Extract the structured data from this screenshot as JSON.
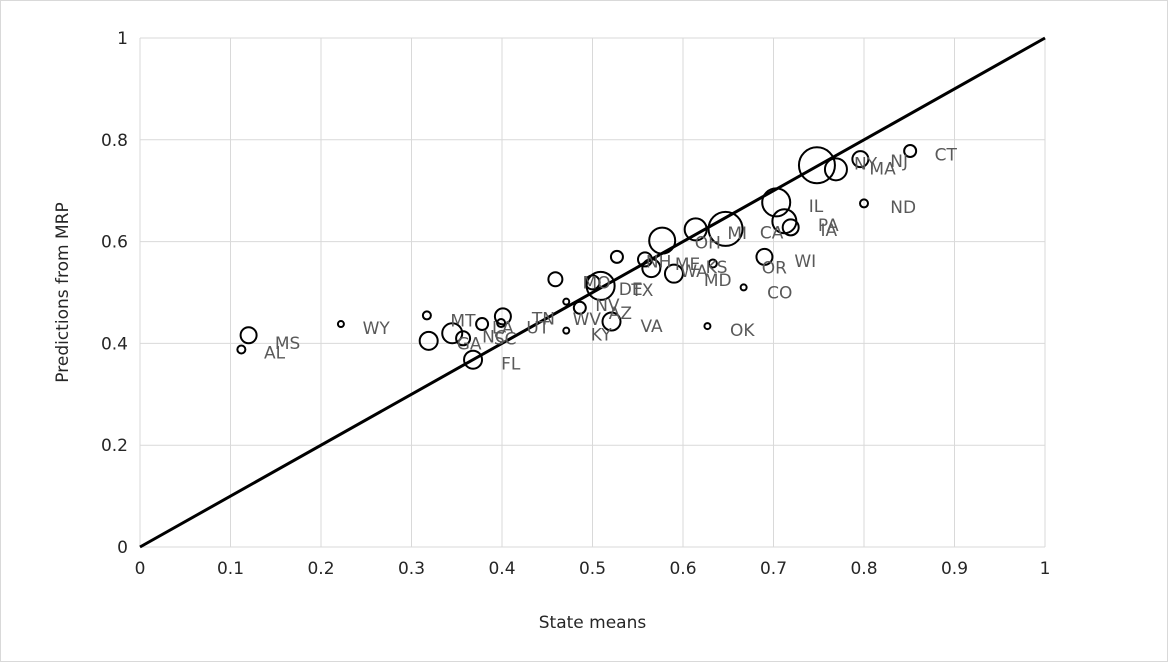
{
  "chart_data": {
    "type": "scatter",
    "title": "",
    "xlabel": "State means",
    "ylabel": "Predictions from MRP",
    "xlim": [
      0,
      1
    ],
    "ylim": [
      0,
      1
    ],
    "x_ticks": [
      "0",
      "0.1",
      "0.2",
      "0.3",
      "0.4",
      "0.5",
      "0.6",
      "0.7",
      "0.8",
      "0.9",
      "1"
    ],
    "y_ticks": [
      "0",
      "0.2",
      "0.4",
      "0.6",
      "0.8",
      "1"
    ],
    "grid": "vertical-and-horizontal",
    "reference_line": {
      "from": [
        0,
        0
      ],
      "to": [
        1,
        1
      ]
    },
    "point_color": "#000000",
    "label_color": "#595959",
    "points": [
      {
        "x": 0.112,
        "y": 0.388,
        "r": 4
      },
      {
        "x": 0.12,
        "y": 0.416,
        "r": 8
      },
      {
        "x": 0.222,
        "y": 0.438,
        "r": 3
      },
      {
        "x": 0.317,
        "y": 0.455,
        "r": 4
      },
      {
        "x": 0.319,
        "y": 0.405,
        "r": 9
      },
      {
        "x": 0.345,
        "y": 0.42,
        "r": 10
      },
      {
        "x": 0.357,
        "y": 0.41,
        "r": 7
      },
      {
        "x": 0.378,
        "y": 0.438,
        "r": 6
      },
      {
        "x": 0.368,
        "y": 0.368,
        "r": 9
      },
      {
        "x": 0.399,
        "y": 0.44,
        "r": 4
      },
      {
        "x": 0.401,
        "y": 0.453,
        "r": 8
      },
      {
        "x": 0.459,
        "y": 0.526,
        "r": 7
      },
      {
        "x": 0.471,
        "y": 0.482,
        "r": 3
      },
      {
        "x": 0.471,
        "y": 0.425,
        "r": 3
      },
      {
        "x": 0.486,
        "y": 0.47,
        "r": 6
      },
      {
        "x": 0.5,
        "y": 0.52,
        "r": 7
      },
      {
        "x": 0.509,
        "y": 0.513,
        "r": 14
      },
      {
        "x": 0.521,
        "y": 0.443,
        "r": 9
      },
      {
        "x": 0.527,
        "y": 0.57,
        "r": 6
      },
      {
        "x": 0.558,
        "y": 0.565,
        "r": 7
      },
      {
        "x": 0.565,
        "y": 0.548,
        "r": 9
      },
      {
        "x": 0.577,
        "y": 0.602,
        "r": 13
      },
      {
        "x": 0.59,
        "y": 0.537,
        "r": 9
      },
      {
        "x": 0.614,
        "y": 0.624,
        "r": 11
      },
      {
        "x": 0.627,
        "y": 0.434,
        "r": 3
      },
      {
        "x": 0.633,
        "y": 0.557,
        "r": 4
      },
      {
        "x": 0.647,
        "y": 0.625,
        "r": 17
      },
      {
        "x": 0.667,
        "y": 0.51,
        "r": 3
      },
      {
        "x": 0.69,
        "y": 0.57,
        "r": 8
      },
      {
        "x": 0.703,
        "y": 0.677,
        "r": 14
      },
      {
        "x": 0.712,
        "y": 0.64,
        "r": 12
      },
      {
        "x": 0.719,
        "y": 0.628,
        "r": 8
      },
      {
        "x": 0.748,
        "y": 0.75,
        "r": 18
      },
      {
        "x": 0.769,
        "y": 0.742,
        "r": 11
      },
      {
        "x": 0.796,
        "y": 0.762,
        "r": 8
      },
      {
        "x": 0.8,
        "y": 0.675,
        "r": 4
      },
      {
        "x": 0.851,
        "y": 0.778,
        "r": 6
      }
    ],
    "labels": [
      {
        "text": "AL",
        "x": 0.137,
        "y": 0.382
      },
      {
        "text": "MS",
        "x": 0.149,
        "y": 0.401
      },
      {
        "text": "WY",
        "x": 0.246,
        "y": 0.43
      },
      {
        "text": "MT",
        "x": 0.343,
        "y": 0.445
      },
      {
        "text": "GA",
        "x": 0.35,
        "y": 0.4
      },
      {
        "text": "NC",
        "x": 0.378,
        "y": 0.414
      },
      {
        "text": "SC",
        "x": 0.391,
        "y": 0.41
      },
      {
        "text": "LA",
        "x": 0.389,
        "y": 0.431
      },
      {
        "text": "UT",
        "x": 0.427,
        "y": 0.431
      },
      {
        "text": "TN",
        "x": 0.433,
        "y": 0.449
      },
      {
        "text": "FL",
        "x": 0.399,
        "y": 0.361
      },
      {
        "text": "MO",
        "x": 0.489,
        "y": 0.52
      },
      {
        "text": "DE",
        "x": 0.529,
        "y": 0.507
      },
      {
        "text": "TX",
        "x": 0.543,
        "y": 0.505
      },
      {
        "text": "NV",
        "x": 0.503,
        "y": 0.475
      },
      {
        "text": "WV",
        "x": 0.478,
        "y": 0.448
      },
      {
        "text": "AZ",
        "x": 0.518,
        "y": 0.46
      },
      {
        "text": "KY",
        "x": 0.498,
        "y": 0.417
      },
      {
        "text": "VA",
        "x": 0.553,
        "y": 0.434
      },
      {
        "text": "NH",
        "x": 0.559,
        "y": 0.561
      },
      {
        "text": "ME",
        "x": 0.591,
        "y": 0.556
      },
      {
        "text": "OH",
        "x": 0.613,
        "y": 0.598
      },
      {
        "text": "WA",
        "x": 0.597,
        "y": 0.542
      },
      {
        "text": "KS",
        "x": 0.625,
        "y": 0.55
      },
      {
        "text": "MD",
        "x": 0.623,
        "y": 0.525
      },
      {
        "text": "MI",
        "x": 0.649,
        "y": 0.617
      },
      {
        "text": "OR",
        "x": 0.687,
        "y": 0.549
      },
      {
        "text": "CO",
        "x": 0.693,
        "y": 0.5
      },
      {
        "text": "OK",
        "x": 0.652,
        "y": 0.426
      },
      {
        "text": "CA",
        "x": 0.685,
        "y": 0.618
      },
      {
        "text": "IL",
        "x": 0.739,
        "y": 0.67
      },
      {
        "text": "PA",
        "x": 0.749,
        "y": 0.633
      },
      {
        "text": "IA",
        "x": 0.752,
        "y": 0.623
      },
      {
        "text": "WI",
        "x": 0.723,
        "y": 0.562
      },
      {
        "text": "NY",
        "x": 0.789,
        "y": 0.753
      },
      {
        "text": "MA",
        "x": 0.806,
        "y": 0.744
      },
      {
        "text": "NJ",
        "x": 0.829,
        "y": 0.758
      },
      {
        "text": "CT",
        "x": 0.878,
        "y": 0.771
      },
      {
        "text": "ND",
        "x": 0.829,
        "y": 0.668
      }
    ]
  }
}
